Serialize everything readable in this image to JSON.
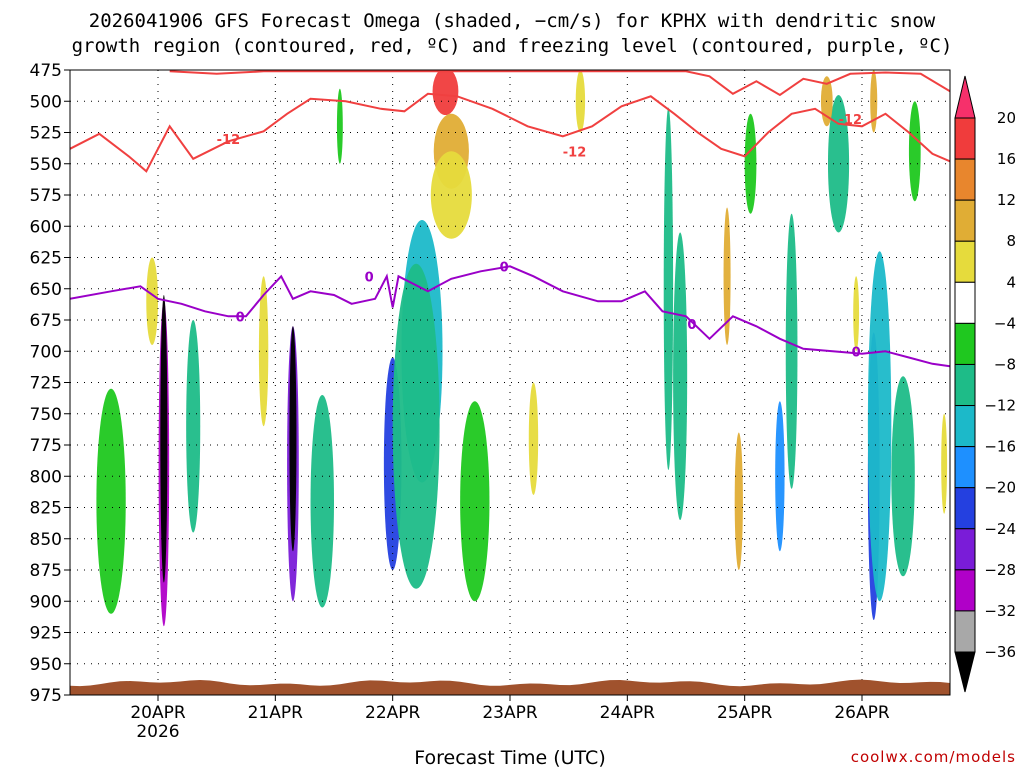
{
  "chart_data": {
    "type": "heatmap",
    "title_lines": [
      "2026041906 GFS Forecast Omega (shaded, −cm/s) for KPHX with dendritic snow",
      "growth region (contoured, red, ºC) and freezing level (contoured, purple, ºC)"
    ],
    "xlabel": "Forecast Time (UTC)",
    "credit": "coolwx.com/models",
    "x_range_days": [
      19.25,
      26.75
    ],
    "y_levels_hpa": [
      475,
      500,
      525,
      550,
      575,
      600,
      625,
      650,
      675,
      700,
      725,
      750,
      775,
      800,
      825,
      850,
      875,
      900,
      925,
      950,
      975
    ],
    "ylim_hpa": [
      475,
      975
    ],
    "x_ticks": [
      {
        "day": 20,
        "label": "20APR",
        "sublabel": "2026"
      },
      {
        "day": 21,
        "label": "21APR",
        "sublabel": ""
      },
      {
        "day": 22,
        "label": "22APR",
        "sublabel": ""
      },
      {
        "day": 23,
        "label": "23APR",
        "sublabel": ""
      },
      {
        "day": 24,
        "label": "24APR",
        "sublabel": ""
      },
      {
        "day": 25,
        "label": "25APR",
        "sublabel": ""
      },
      {
        "day": 26,
        "label": "26APR",
        "sublabel": ""
      }
    ],
    "colorbar": {
      "labels": [
        "20",
        "16",
        "12",
        "8",
        "4",
        "−4",
        "−8",
        "−12",
        "−16",
        "−20",
        "−24",
        "−28",
        "−32",
        "−36"
      ],
      "colors": [
        "#f6306b",
        "#f03c3c",
        "#e8862d",
        "#e0ad35",
        "#e6db3c",
        "#ffffff",
        "#1fc81f",
        "#1ebc88",
        "#1cb9c9",
        "#1e90ff",
        "#2440e0",
        "#7a1cd8",
        "#b000c8",
        "#a8a8a8",
        "#000000"
      ]
    },
    "freezing_level": {
      "color": "#9a00c8",
      "label": "0",
      "points": [
        [
          19.25,
          658
        ],
        [
          19.6,
          652
        ],
        [
          19.85,
          648
        ],
        [
          20.0,
          658
        ],
        [
          20.2,
          662
        ],
        [
          20.4,
          668
        ],
        [
          20.6,
          672
        ],
        [
          20.75,
          672
        ],
        [
          20.9,
          655
        ],
        [
          21.05,
          640
        ],
        [
          21.15,
          658
        ],
        [
          21.3,
          652
        ],
        [
          21.5,
          655
        ],
        [
          21.65,
          662
        ],
        [
          21.85,
          658
        ],
        [
          21.95,
          640
        ],
        [
          22.0,
          665
        ],
        [
          22.05,
          640
        ],
        [
          22.3,
          652
        ],
        [
          22.5,
          642
        ],
        [
          22.75,
          636
        ],
        [
          23.0,
          632
        ],
        [
          23.2,
          640
        ],
        [
          23.45,
          652
        ],
        [
          23.75,
          660
        ],
        [
          23.95,
          660
        ],
        [
          24.15,
          652
        ],
        [
          24.3,
          668
        ],
        [
          24.5,
          672
        ],
        [
          24.7,
          690
        ],
        [
          24.9,
          672
        ],
        [
          25.1,
          680
        ],
        [
          25.3,
          690
        ],
        [
          25.5,
          698
        ],
        [
          25.75,
          700
        ],
        [
          26.0,
          702
        ],
        [
          26.2,
          700
        ],
        [
          26.4,
          705
        ],
        [
          26.6,
          710
        ],
        [
          26.75,
          712
        ]
      ],
      "annotations": [
        [
          20.7,
          672
        ],
        [
          21.8,
          640
        ],
        [
          22.95,
          632
        ],
        [
          24.55,
          678
        ],
        [
          25.95,
          700
        ]
      ]
    },
    "dgz_contour": {
      "color": "#f04040",
      "label": "-12",
      "lower": [
        [
          19.25,
          538
        ],
        [
          19.5,
          526
        ],
        [
          19.75,
          544
        ],
        [
          19.9,
          556
        ],
        [
          20.1,
          520
        ],
        [
          20.3,
          546
        ],
        [
          20.6,
          532
        ],
        [
          20.9,
          524
        ],
        [
          21.1,
          510
        ],
        [
          21.3,
          498
        ],
        [
          21.6,
          500
        ],
        [
          21.9,
          506
        ],
        [
          22.1,
          508
        ],
        [
          22.3,
          494
        ],
        [
          22.55,
          496
        ],
        [
          22.85,
          506
        ],
        [
          23.15,
          520
        ],
        [
          23.45,
          528
        ],
        [
          23.7,
          520
        ],
        [
          23.95,
          504
        ],
        [
          24.2,
          496
        ],
        [
          24.4,
          510
        ],
        [
          24.6,
          525
        ],
        [
          24.8,
          538
        ],
        [
          25.0,
          544
        ],
        [
          25.2,
          525
        ],
        [
          25.4,
          510
        ],
        [
          25.6,
          506
        ],
        [
          25.8,
          518
        ],
        [
          26.0,
          520
        ],
        [
          26.2,
          510
        ],
        [
          26.4,
          525
        ],
        [
          26.6,
          542
        ],
        [
          26.75,
          548
        ]
      ],
      "upper": [
        [
          20.1,
          476
        ],
        [
          20.5,
          478
        ],
        [
          20.9,
          476
        ],
        [
          24.5,
          476
        ],
        [
          24.7,
          480
        ],
        [
          24.9,
          494
        ],
        [
          25.1,
          484
        ],
        [
          25.3,
          495
        ],
        [
          25.5,
          482
        ],
        [
          25.7,
          486
        ],
        [
          25.9,
          478
        ],
        [
          26.2,
          477
        ],
        [
          26.5,
          478
        ],
        [
          26.75,
          492
        ]
      ],
      "annotations": [
        [
          20.6,
          530
        ],
        [
          23.55,
          540
        ],
        [
          25.9,
          514
        ]
      ]
    },
    "shaded_blobs": [
      {
        "t": 22.45,
        "p": 492,
        "w": 0.22,
        "h": 38,
        "v": 18
      },
      {
        "t": 22.5,
        "p": 540,
        "w": 0.3,
        "h": 60,
        "v": 11
      },
      {
        "t": 22.5,
        "p": 575,
        "w": 0.35,
        "h": 70,
        "v": 6
      },
      {
        "t": 19.95,
        "p": 660,
        "w": 0.1,
        "h": 70,
        "v": 7
      },
      {
        "t": 20.05,
        "p": 790,
        "w": 0.09,
        "h": 260,
        "v": -28
      },
      {
        "t": 20.05,
        "p": 770,
        "w": 0.06,
        "h": 230,
        "v": -36
      },
      {
        "t": 20.3,
        "p": 760,
        "w": 0.12,
        "h": 170,
        "v": -10
      },
      {
        "t": 19.6,
        "p": 820,
        "w": 0.25,
        "h": 180,
        "v": -7
      },
      {
        "t": 21.15,
        "p": 790,
        "w": 0.1,
        "h": 220,
        "v": -24
      },
      {
        "t": 21.15,
        "p": 770,
        "w": 0.06,
        "h": 180,
        "v": -36
      },
      {
        "t": 20.9,
        "p": 700,
        "w": 0.08,
        "h": 120,
        "v": 6
      },
      {
        "t": 21.4,
        "p": 820,
        "w": 0.2,
        "h": 170,
        "v": -9
      },
      {
        "t": 22.0,
        "p": 790,
        "w": 0.15,
        "h": 170,
        "v": -22
      },
      {
        "t": 22.25,
        "p": 700,
        "w": 0.35,
        "h": 210,
        "v": -12
      },
      {
        "t": 22.2,
        "p": 760,
        "w": 0.4,
        "h": 260,
        "v": -8
      },
      {
        "t": 22.7,
        "p": 820,
        "w": 0.25,
        "h": 160,
        "v": -6
      },
      {
        "t": 23.2,
        "p": 770,
        "w": 0.08,
        "h": 90,
        "v": 5
      },
      {
        "t": 24.35,
        "p": 650,
        "w": 0.08,
        "h": 290,
        "v": -9
      },
      {
        "t": 24.45,
        "p": 720,
        "w": 0.12,
        "h": 230,
        "v": -10
      },
      {
        "t": 24.85,
        "p": 640,
        "w": 0.06,
        "h": 110,
        "v": 9
      },
      {
        "t": 24.95,
        "p": 820,
        "w": 0.07,
        "h": 110,
        "v": 11
      },
      {
        "t": 25.4,
        "p": 700,
        "w": 0.1,
        "h": 220,
        "v": -11
      },
      {
        "t": 25.3,
        "p": 800,
        "w": 0.08,
        "h": 120,
        "v": -17
      },
      {
        "t": 25.05,
        "p": 550,
        "w": 0.1,
        "h": 80,
        "v": -7
      },
      {
        "t": 25.8,
        "p": 550,
        "w": 0.18,
        "h": 110,
        "v": -10
      },
      {
        "t": 25.7,
        "p": 500,
        "w": 0.1,
        "h": 40,
        "v": 9
      },
      {
        "t": 26.1,
        "p": 800,
        "w": 0.1,
        "h": 230,
        "v": -21
      },
      {
        "t": 26.15,
        "p": 760,
        "w": 0.2,
        "h": 280,
        "v": -12
      },
      {
        "t": 26.35,
        "p": 800,
        "w": 0.2,
        "h": 160,
        "v": -8
      },
      {
        "t": 26.45,
        "p": 540,
        "w": 0.1,
        "h": 80,
        "v": -7
      },
      {
        "t": 26.7,
        "p": 790,
        "w": 0.05,
        "h": 80,
        "v": 5
      },
      {
        "t": 26.1,
        "p": 500,
        "w": 0.06,
        "h": 50,
        "v": 8
      },
      {
        "t": 25.95,
        "p": 670,
        "w": 0.05,
        "h": 60,
        "v": 7
      },
      {
        "t": 21.55,
        "p": 520,
        "w": 0.05,
        "h": 60,
        "v": -6
      },
      {
        "t": 23.6,
        "p": 500,
        "w": 0.08,
        "h": 50,
        "v": 5
      }
    ],
    "terrain_color": "#a0522d"
  }
}
